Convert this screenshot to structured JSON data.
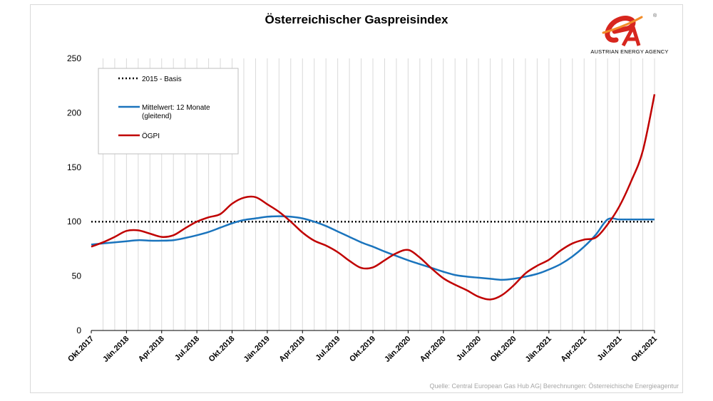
{
  "logo": {
    "icon": "austrian-energy-agency-logo",
    "text": "AUSTRIAN ENERGY AGENCY",
    "mark": "®"
  },
  "source": "Quelle: Central European Gas Hub AG| Berechnungen: Österreichische Energieagentur",
  "colors": {
    "baseline": "#000000",
    "moving_average": "#1a74bd",
    "oegpi": "#c00000",
    "grid": "#d9d9d9"
  },
  "chart_data": {
    "type": "line",
    "title": "Österreichischer  Gaspreisindex",
    "xlabel": "",
    "ylabel": "",
    "ylim": [
      0,
      250
    ],
    "yticks": [
      0,
      50,
      100,
      150,
      200,
      250
    ],
    "grid": "vertical-monthly",
    "legend_position": "top-left",
    "x": [
      "2017-10",
      "2017-11",
      "2017-12",
      "2018-01",
      "2018-02",
      "2018-03",
      "2018-04",
      "2018-05",
      "2018-06",
      "2018-07",
      "2018-08",
      "2018-09",
      "2018-10",
      "2018-11",
      "2018-12",
      "2019-01",
      "2019-02",
      "2019-03",
      "2019-04",
      "2019-05",
      "2019-06",
      "2019-07",
      "2019-08",
      "2019-09",
      "2019-10",
      "2019-11",
      "2019-12",
      "2020-01",
      "2020-02",
      "2020-03",
      "2020-04",
      "2020-05",
      "2020-06",
      "2020-07",
      "2020-08",
      "2020-09",
      "2020-10",
      "2020-11",
      "2020-12",
      "2021-01",
      "2021-02",
      "2021-03",
      "2021-04",
      "2021-05",
      "2021-06",
      "2021-07",
      "2021-08",
      "2021-09",
      "2021-10"
    ],
    "xtick_labels": [
      "Okt.2017",
      "Jän.2018",
      "Apr.2018",
      "Jul.2018",
      "Okt.2018",
      "Jän.2019",
      "Apr.2019",
      "Jul.2019",
      "Okt.2019",
      "Jän.2020",
      "Apr.2020",
      "Jul.2020",
      "Okt.2020",
      "Jän.2021",
      "Apr.2021",
      "Jul.2021",
      "Okt.2021"
    ],
    "series": [
      {
        "name": "2015 - Basis",
        "style": "dotted",
        "values": [
          100,
          100,
          100,
          100,
          100,
          100,
          100,
          100,
          100,
          100,
          100,
          100,
          100,
          100,
          100,
          100,
          100,
          100,
          100,
          100,
          100,
          100,
          100,
          100,
          100,
          100,
          100,
          100,
          100,
          100,
          100,
          100,
          100,
          100,
          100,
          100,
          100,
          100,
          100,
          100,
          100,
          100,
          100,
          100,
          100,
          100,
          100,
          100,
          100
        ]
      },
      {
        "name": "Mittelwert: 12 Monate",
        "name_line2": "(gleitend)",
        "style": "solid",
        "values": [
          79,
          80,
          81,
          82,
          83,
          82.5,
          82.5,
          83,
          85,
          87.5,
          90.5,
          94.5,
          98.5,
          101.5,
          103,
          104.5,
          105,
          104.5,
          103,
          100,
          96,
          91,
          86,
          81,
          77,
          72.5,
          68.5,
          64.5,
          61,
          57.5,
          54,
          51,
          49.5,
          48.5,
          47.5,
          46.5,
          47.5,
          49.5,
          52,
          56,
          61,
          68,
          77,
          88,
          102,
          102,
          102,
          102,
          102
        ]
      },
      {
        "name": "ÖGPI",
        "style": "solid",
        "values": [
          77,
          81,
          86,
          91.5,
          92,
          89,
          86,
          87.5,
          94,
          100,
          104,
          107,
          116.5,
          122,
          122.5,
          116,
          109,
          100,
          90,
          82.5,
          78,
          72,
          64,
          57.5,
          58,
          64.5,
          71,
          74,
          67,
          57,
          48,
          42,
          37,
          31,
          28.5,
          32.5,
          41.5,
          52.5,
          59.5,
          65,
          73.5,
          80,
          83.5,
          85.5,
          97.5,
          114,
          137,
          165,
          217
        ]
      }
    ]
  }
}
